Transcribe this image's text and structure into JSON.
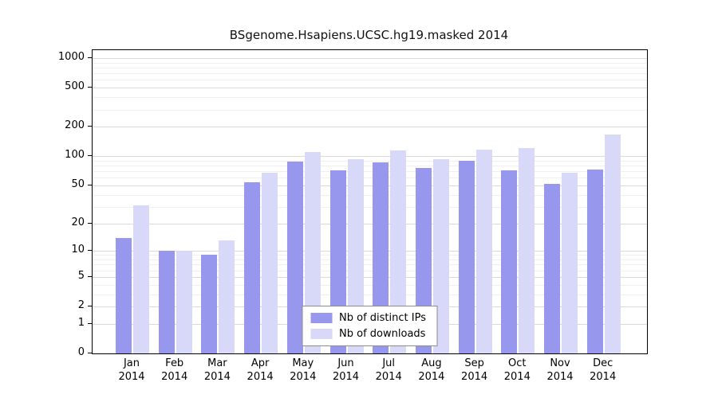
{
  "chart_data": {
    "type": "bar",
    "title": "BSgenome.Hsapiens.UCSC.hg19.masked 2014",
    "year": "2014",
    "categories": [
      "Jan",
      "Feb",
      "Mar",
      "Apr",
      "May",
      "Jun",
      "Jul",
      "Aug",
      "Sep",
      "Oct",
      "Nov",
      "Dec"
    ],
    "series": [
      {
        "name": "Nb of distinct IPs",
        "color": "#9797ee",
        "values": [
          14,
          10,
          9,
          54,
          88,
          72,
          87,
          76,
          90,
          72,
          52,
          73
        ]
      },
      {
        "name": "Nb of downloads",
        "color": "#d8d8f8",
        "values": [
          31,
          10,
          13,
          68,
          110,
          93,
          115,
          93,
          116,
          120,
          67,
          165
        ]
      }
    ],
    "yscale": "log1p",
    "yticks": [
      0,
      1,
      2,
      5,
      10,
      20,
      50,
      100,
      200,
      500,
      1000
    ],
    "ylim": [
      0,
      1000
    ],
    "grid": true,
    "legend_position": "bottom-center",
    "colors": {
      "grid_major": "#d9d9d9",
      "grid_minor": "#f0f0f0",
      "axis": "#000000",
      "background": "#ffffff"
    }
  }
}
